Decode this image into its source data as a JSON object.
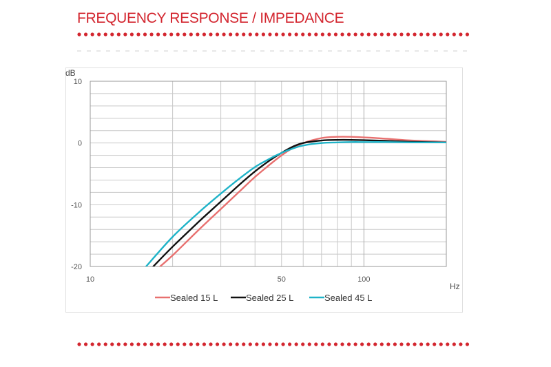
{
  "page": {
    "title": "FREQUENCY RESPONSE / IMPEDANCE"
  },
  "colors": {
    "accent": "#d3262f",
    "grid": "#c8c8c8",
    "dash": "#cfcfcf"
  },
  "chart_data": {
    "type": "line",
    "title": "",
    "xlabel": "Hz",
    "ylabel": "dB",
    "x_scale": "log",
    "xlim": [
      10,
      200
    ],
    "ylim": [
      -20,
      10
    ],
    "x_ticks": [
      10,
      50,
      100
    ],
    "x_tick_labels": [
      "10",
      "50",
      "100"
    ],
    "y_ticks": [
      10,
      0,
      -10,
      -20
    ],
    "y_tick_labels": [
      "10",
      "0",
      "-10",
      "-20"
    ],
    "grid": true,
    "legend_position": "bottom",
    "series": [
      {
        "name": "Sealed 15 L",
        "color": "#e8706f",
        "x": [
          18,
          20,
          25,
          30,
          35,
          40,
          45,
          50,
          55,
          60,
          70,
          80,
          90,
          100,
          120,
          150,
          200
        ],
        "y": [
          -20,
          -18.2,
          -14,
          -10.7,
          -7.9,
          -5.5,
          -3.6,
          -2.0,
          -0.8,
          0.0,
          0.8,
          1.0,
          1.0,
          0.9,
          0.7,
          0.4,
          0.2
        ]
      },
      {
        "name": "Sealed 25 L",
        "color": "#111111",
        "x": [
          17,
          20,
          25,
          30,
          35,
          40,
          45,
          50,
          55,
          60,
          70,
          80,
          90,
          100,
          120,
          150,
          200
        ],
        "y": [
          -20,
          -16.8,
          -12.7,
          -9.5,
          -6.8,
          -4.6,
          -2.9,
          -1.6,
          -0.6,
          0.0,
          0.4,
          0.5,
          0.5,
          0.45,
          0.35,
          0.2,
          0.1
        ]
      },
      {
        "name": "Sealed 45 L",
        "color": "#1fb3c8",
        "x": [
          16,
          20,
          25,
          30,
          35,
          40,
          45,
          50,
          55,
          60,
          70,
          80,
          90,
          100,
          120,
          150,
          200
        ],
        "y": [
          -20,
          -15.2,
          -11.2,
          -8.2,
          -5.8,
          -3.9,
          -2.6,
          -1.6,
          -0.9,
          -0.4,
          0.0,
          0.1,
          0.15,
          0.15,
          0.15,
          0.1,
          0.1
        ]
      }
    ]
  }
}
